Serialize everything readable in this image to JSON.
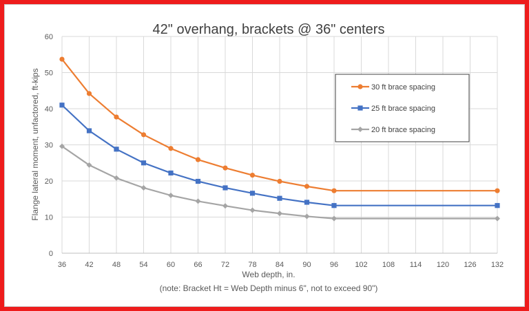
{
  "chart_data": {
    "type": "line",
    "title": "42\" overhang, brackets @ 36\" centers",
    "xlabel": "Web depth, in.",
    "ylabel": "Flange lateral moment, unfactored, ft-kips",
    "note": "(note: Bracket Ht = Web Depth minus 6\", not to exceed 90\")",
    "x": [
      36,
      42,
      48,
      54,
      60,
      66,
      72,
      78,
      84,
      90,
      96,
      102,
      108,
      114,
      120,
      126,
      132
    ],
    "x_ticks": [
      "36",
      "42",
      "48",
      "54",
      "60",
      "66",
      "72",
      "78",
      "84",
      "90",
      "96",
      "102",
      "108",
      "114",
      "120",
      "126",
      "132"
    ],
    "y_ticks": [
      "0",
      "10",
      "20",
      "30",
      "40",
      "50",
      "60"
    ],
    "ylim": [
      0,
      60
    ],
    "grid": "vertical and horizontal",
    "legend_position": "right",
    "series": [
      {
        "name": "30 ft brace spacing",
        "color": "#ed7d31",
        "marker": "circle",
        "x": [
          36,
          42,
          48,
          54,
          60,
          66,
          72,
          78,
          84,
          90,
          96,
          132
        ],
        "values": [
          53.7,
          44.2,
          37.7,
          32.8,
          29.0,
          25.9,
          23.6,
          21.6,
          19.9,
          18.5,
          17.3,
          17.3
        ]
      },
      {
        "name": "25 ft brace spacing",
        "color": "#4472c4",
        "marker": "square",
        "x": [
          36,
          42,
          48,
          54,
          60,
          66,
          72,
          78,
          84,
          90,
          96,
          132
        ],
        "values": [
          41.0,
          33.9,
          28.8,
          25.0,
          22.2,
          19.9,
          18.1,
          16.6,
          15.2,
          14.1,
          13.2,
          13.2
        ]
      },
      {
        "name": "20 ft brace spacing",
        "color": "#a5a5a5",
        "marker": "diamond",
        "x": [
          36,
          42,
          48,
          54,
          60,
          66,
          72,
          78,
          84,
          90,
          96,
          132
        ],
        "values": [
          29.6,
          24.4,
          20.8,
          18.1,
          16.0,
          14.4,
          13.1,
          11.9,
          11.0,
          10.2,
          9.6,
          9.6
        ]
      }
    ]
  }
}
